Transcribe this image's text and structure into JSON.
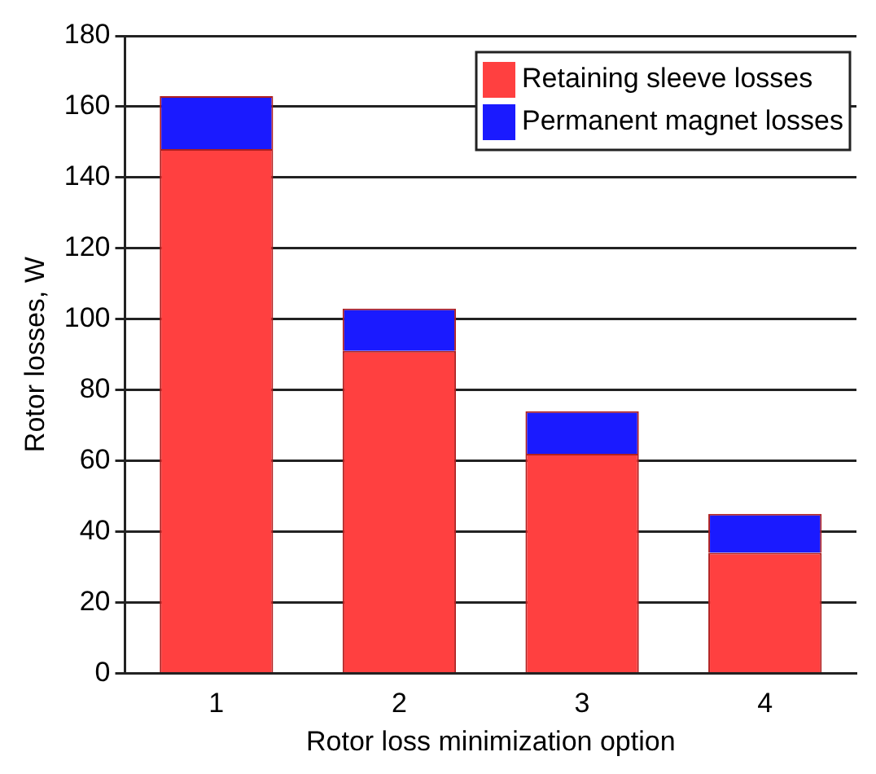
{
  "chart_data": {
    "type": "bar",
    "stacked": true,
    "xlabel": "Rotor loss minimization option",
    "ylabel": "Rotor losses, W",
    "categories": [
      "1",
      "2",
      "3",
      "4"
    ],
    "series": [
      {
        "name": "Retaining sleeve losses",
        "color": "#ff4040",
        "values": [
          148,
          91,
          62,
          34
        ]
      },
      {
        "name": "Permanent magnet losses",
        "color": "#1a1aff",
        "values": [
          15,
          12,
          12,
          11
        ]
      }
    ],
    "ylim": [
      0,
      180
    ],
    "yticks": [
      0,
      20,
      40,
      60,
      80,
      100,
      120,
      140,
      160,
      180
    ],
    "grid": "y",
    "legend": "top right"
  }
}
